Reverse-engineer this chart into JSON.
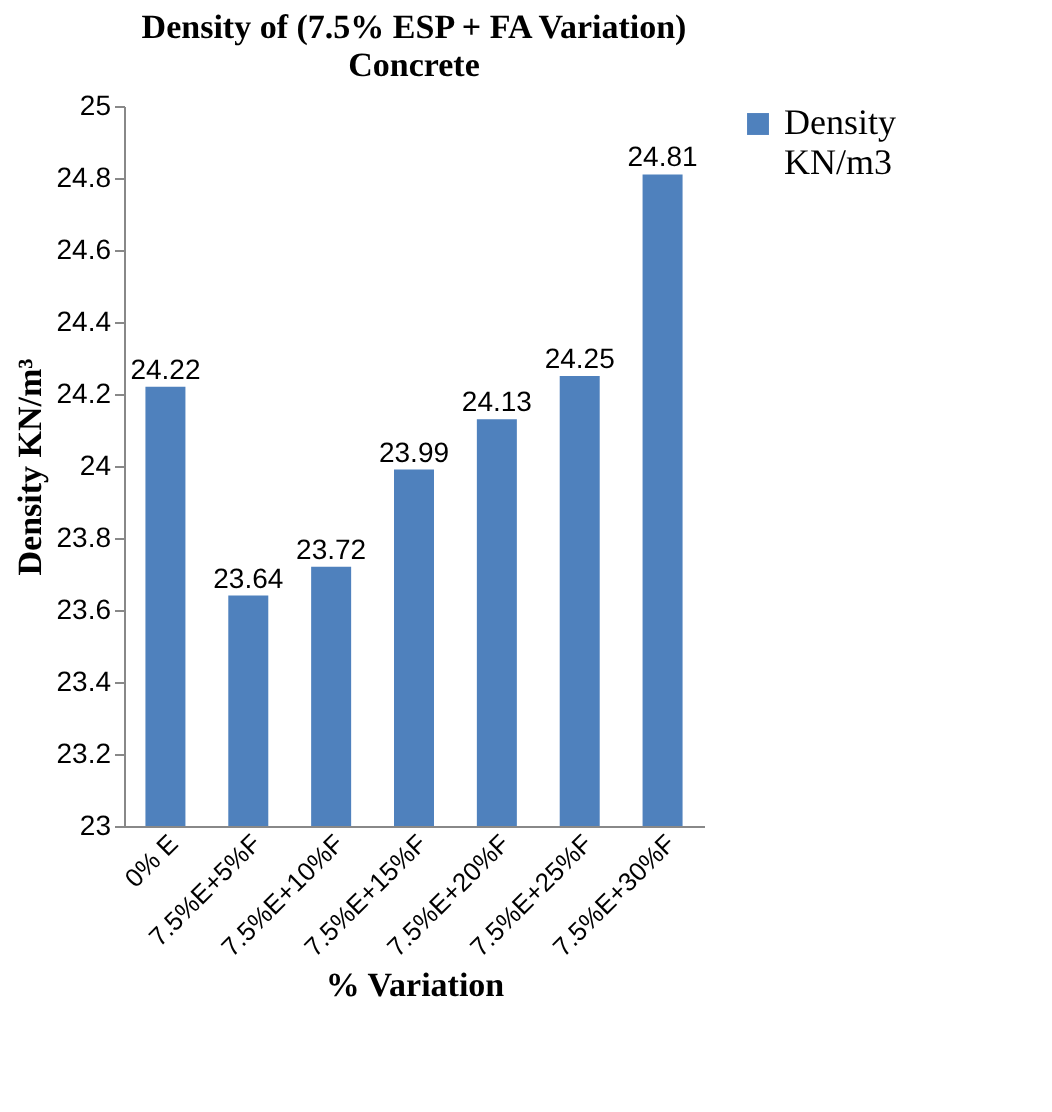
{
  "chart_data": {
    "type": "bar",
    "title": [
      "Density of (7.5% ESP + FA Variation)",
      "Concrete"
    ],
    "xlabel": "% Variation",
    "ylabel": "Density KN/m³",
    "categories": [
      "0% E",
      "7.5%E+5%F",
      "7.5%E+10%F",
      "7.5%E+15%F",
      "7.5%E+20%F",
      "7.5%E+25%F",
      "7.5%E+30%F"
    ],
    "series": [
      {
        "name": "Density KN/m3",
        "color": "#4f81bd",
        "values": [
          24.22,
          23.64,
          23.72,
          23.99,
          24.13,
          24.25,
          24.81
        ]
      }
    ],
    "ylim": [
      23,
      25
    ],
    "yticks": [
      23,
      23.2,
      23.4,
      23.6,
      23.8,
      24,
      24.2,
      24.4,
      24.6,
      24.8,
      25
    ],
    "grid": false,
    "legend": "right",
    "data_labels": true
  }
}
